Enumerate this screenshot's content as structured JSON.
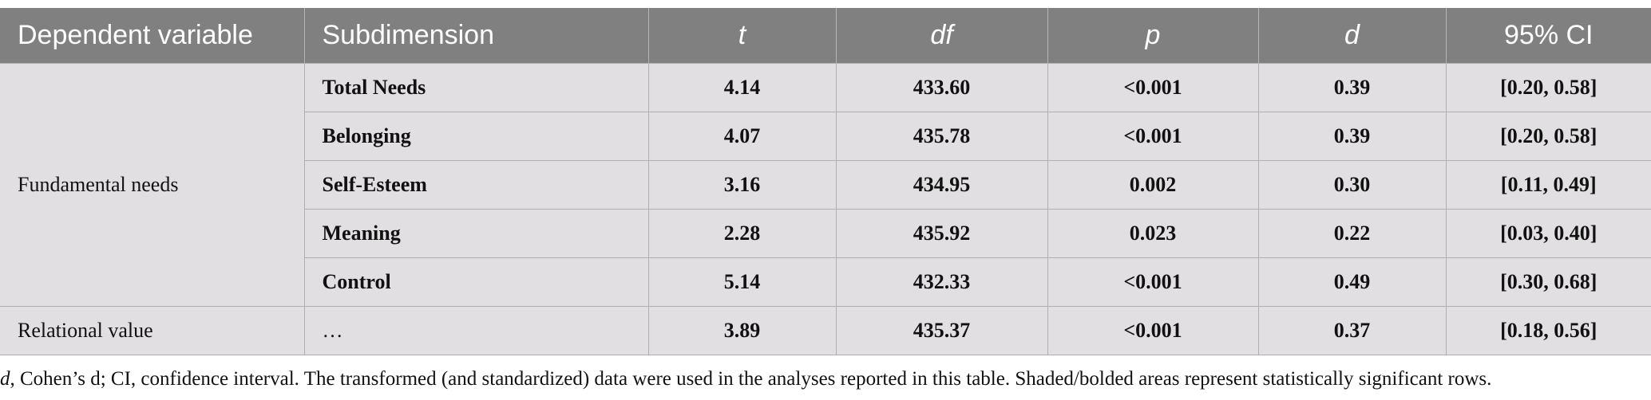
{
  "table": {
    "headers": [
      "Dependent variable",
      "Subdimension",
      "t",
      "df",
      "p",
      "d",
      "95% CI"
    ],
    "groups": [
      {
        "label": "Fundamental needs",
        "rows": [
          [
            "Total Needs",
            "4.14",
            "433.60",
            "<0.001",
            "0.39",
            "[0.20, 0.58]"
          ],
          [
            "Belonging",
            "4.07",
            "435.78",
            "<0.001",
            "0.39",
            "[0.20, 0.58]"
          ],
          [
            "Self-Esteem",
            "3.16",
            "434.95",
            "0.002",
            "0.30",
            "[0.11, 0.49]"
          ],
          [
            "Meaning",
            "2.28",
            "435.92",
            "0.023",
            "0.22",
            "[0.03, 0.40]"
          ],
          [
            "Control",
            "5.14",
            "432.33",
            "<0.001",
            "0.49",
            "[0.30, 0.68]"
          ]
        ]
      },
      {
        "label": "Relational value",
        "rows": [
          [
            "…",
            "3.89",
            "435.37",
            "<0.001",
            "0.37",
            "[0.18, 0.56]"
          ]
        ]
      }
    ]
  },
  "note": [
    "d",
    ", Cohen’s d; CI, confidence interval. The transformed (and standardized) data were used in the analyses reported in this table. Shaded/bolded areas represent statistically significant rows."
  ]
}
